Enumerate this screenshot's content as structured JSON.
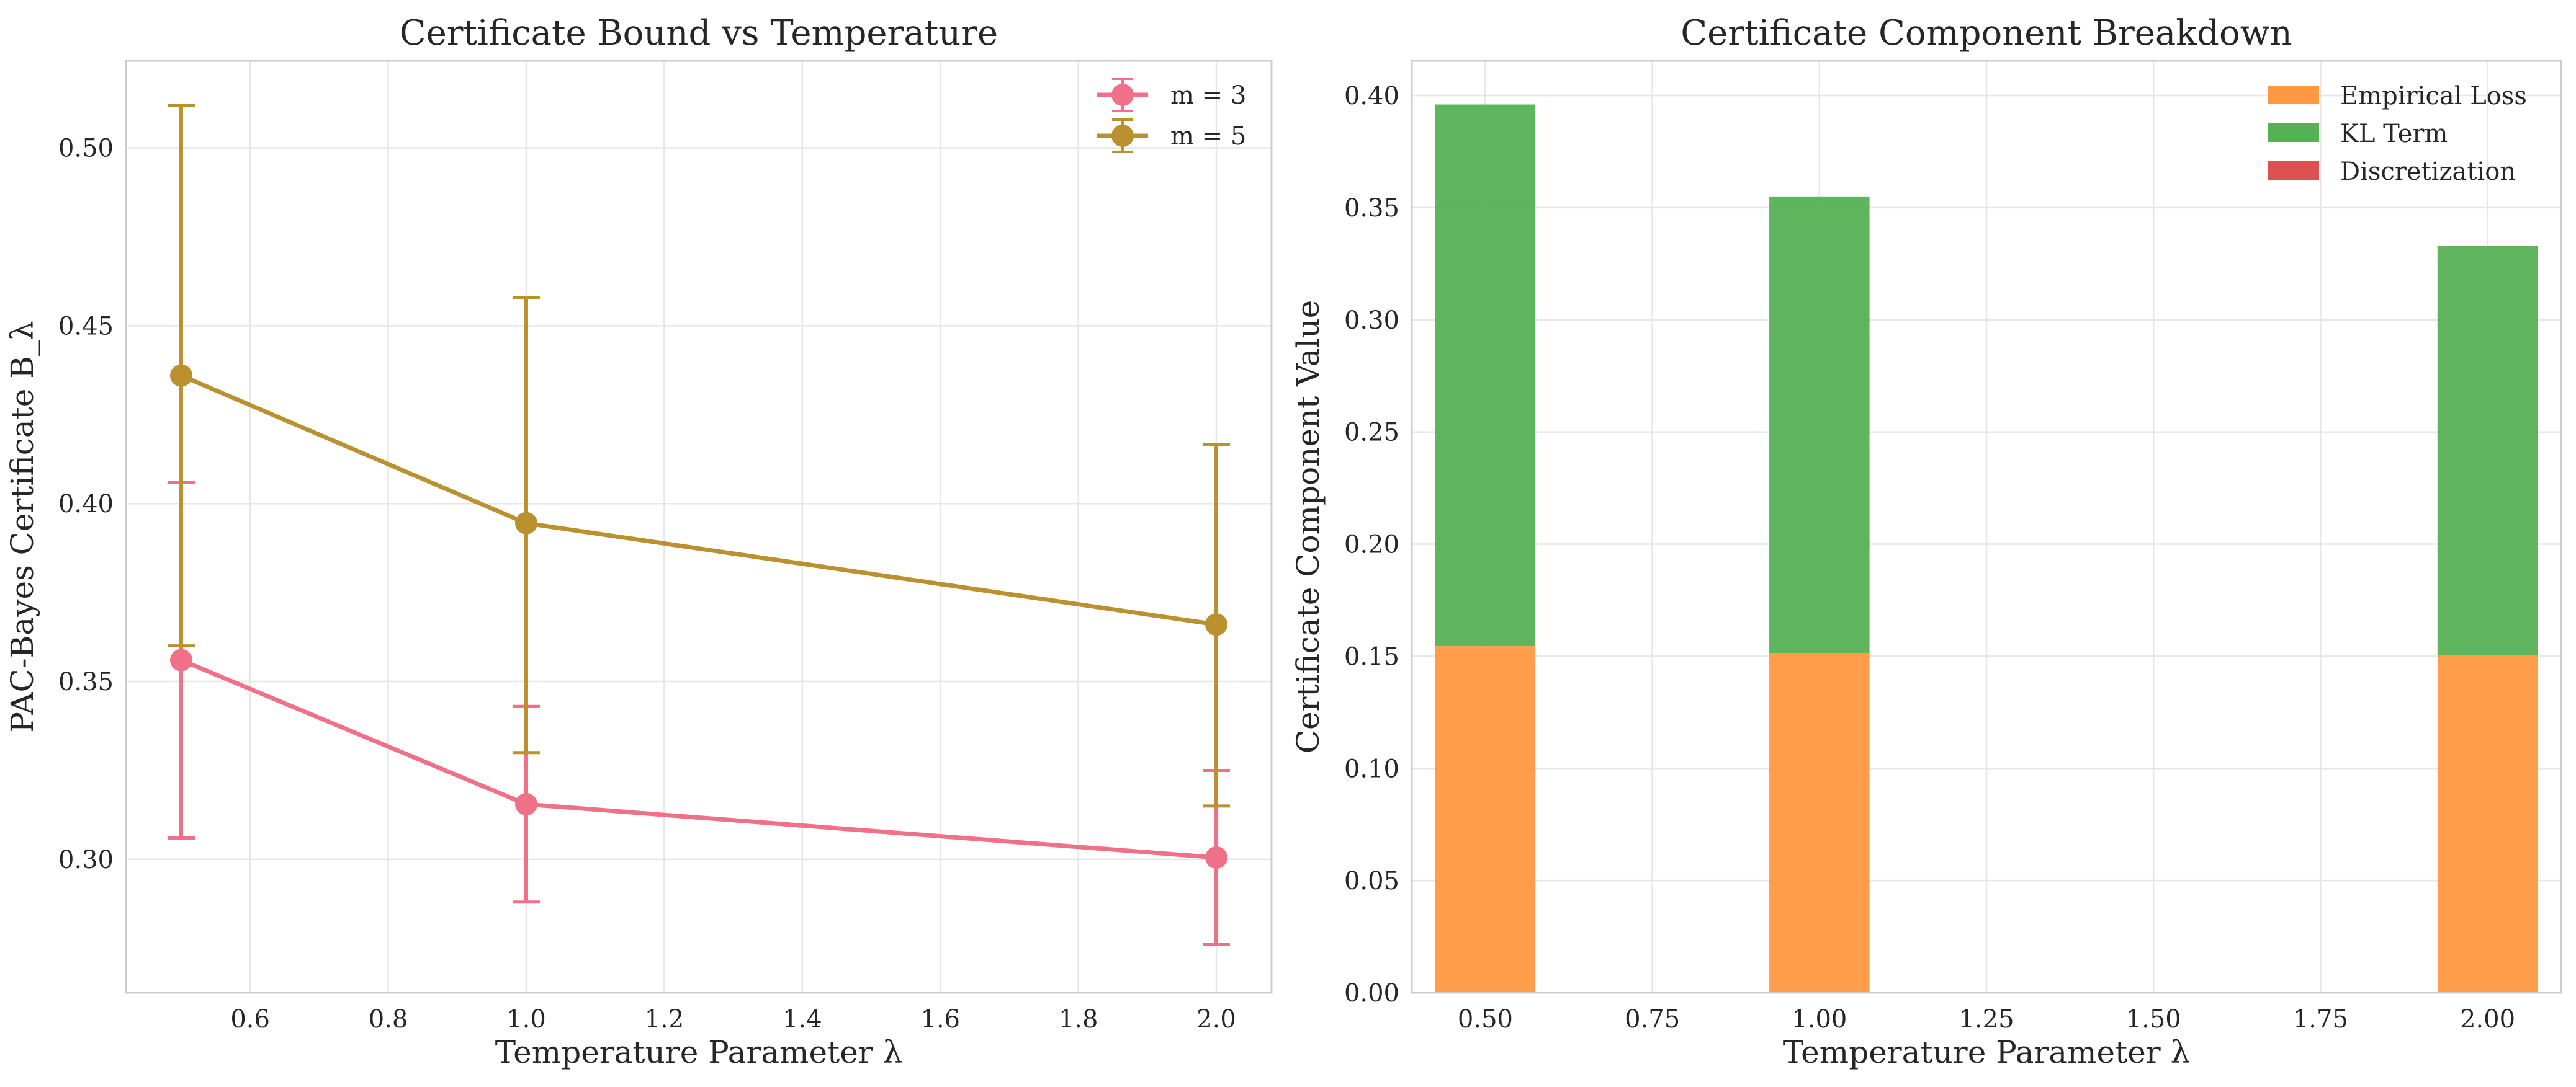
{
  "chart_data": [
    {
      "type": "line",
      "title": "Certificate Bound vs Temperature",
      "xlabel": "Temperature Parameter λ",
      "ylabel": "PAC-Bayes Certificate B_λ",
      "xlim": [
        0.42,
        2.08
      ],
      "ylim": [
        0.2625,
        0.5245
      ],
      "xticks": [
        0.6,
        0.8,
        1.0,
        1.2,
        1.4,
        1.6,
        1.8,
        2.0
      ],
      "xtick_labels": [
        "0.6",
        "0.8",
        "1.0",
        "1.2",
        "1.4",
        "1.6",
        "1.8",
        "2.0"
      ],
      "yticks": [
        0.3,
        0.35,
        0.4,
        0.45,
        0.5
      ],
      "ytick_labels": [
        "0.30",
        "0.35",
        "0.40",
        "0.45",
        "0.50"
      ],
      "grid": true,
      "legend_position": "top-right",
      "series": [
        {
          "name": "m = 3",
          "color": "#f07088",
          "x": [
            0.5,
            1.0,
            2.0
          ],
          "y": [
            0.356,
            0.3155,
            0.3005
          ],
          "yerr_low": [
            0.306,
            0.288,
            0.276
          ],
          "yerr_high": [
            0.406,
            0.343,
            0.325
          ]
        },
        {
          "name": "m = 5",
          "color": "#bb9130",
          "x": [
            0.5,
            1.0,
            2.0
          ],
          "y": [
            0.436,
            0.3945,
            0.366
          ],
          "yerr_low": [
            0.36,
            0.33,
            0.315
          ],
          "yerr_high": [
            0.512,
            0.458,
            0.4165
          ]
        }
      ]
    },
    {
      "type": "bar",
      "stacked": true,
      "title": "Certificate Component Breakdown",
      "xlabel": "Temperature Parameter λ",
      "ylabel": "Certificate Component Value",
      "xlim": [
        0.39,
        2.11
      ],
      "ylim": [
        0.0,
        0.4155
      ],
      "xticks": [
        0.5,
        0.75,
        1.0,
        1.25,
        1.5,
        1.75,
        2.0
      ],
      "xtick_labels": [
        "0.50",
        "0.75",
        "1.00",
        "1.25",
        "1.50",
        "1.75",
        "2.00"
      ],
      "yticks": [
        0.0,
        0.05,
        0.1,
        0.15,
        0.2,
        0.25,
        0.3,
        0.35,
        0.4
      ],
      "ytick_labels": [
        "0.00",
        "0.05",
        "0.10",
        "0.15",
        "0.20",
        "0.25",
        "0.30",
        "0.35",
        "0.40"
      ],
      "bar_width": 0.15,
      "grid": true,
      "legend_position": "top-right",
      "x": [
        0.5,
        1.0,
        2.0
      ],
      "series": [
        {
          "name": "Empirical Loss",
          "color": "#ff9840",
          "values": [
            0.1545,
            0.1515,
            0.1505
          ]
        },
        {
          "name": "KL Term",
          "color": "#55b155",
          "values": [
            0.2415,
            0.2035,
            0.1825
          ]
        },
        {
          "name": "Discretization",
          "color": "#dc5253",
          "values": [
            0.0,
            0.0,
            0.0
          ]
        }
      ]
    }
  ]
}
